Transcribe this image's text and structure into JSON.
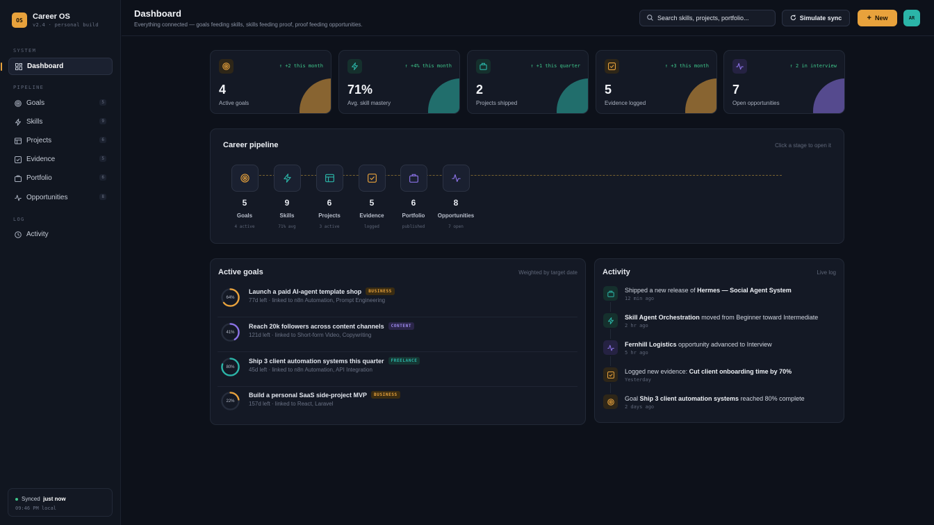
{
  "app": {
    "logo": "OS",
    "name": "Career OS",
    "version": "v2.4 · personal build"
  },
  "sidebar": {
    "system_label": "SYSTEM",
    "dashboard": "Dashboard",
    "pipeline_label": "PIPELINE",
    "items": [
      {
        "label": "Goals",
        "count": "5",
        "icon": "target-icon"
      },
      {
        "label": "Skills",
        "count": "9",
        "icon": "bolt-icon"
      },
      {
        "label": "Projects",
        "count": "6",
        "icon": "layout-icon"
      },
      {
        "label": "Evidence",
        "count": "5",
        "icon": "checkbox-icon"
      },
      {
        "label": "Portfolio",
        "count": "6",
        "icon": "briefcase-icon"
      },
      {
        "label": "Opportunities",
        "count": "8",
        "icon": "pulse-icon"
      }
    ],
    "log_label": "LOG",
    "activity": "Activity",
    "sync_label": "Synced",
    "sync_value": "just now",
    "sync_time": "09:46 PM local"
  },
  "header": {
    "title": "Dashboard",
    "subtitle": "Everything connected — goals feeding skills, skills feeding proof, proof feeding opportunities.",
    "search_placeholder": "Search skills, projects, portfolio...",
    "sync_button": "Simulate sync",
    "new_button": "New",
    "avatar": "AR"
  },
  "stats": [
    {
      "value": "4",
      "label": "Active goals",
      "delta": "+2 this month",
      "color": "#e8a23c",
      "icon": "target-icon"
    },
    {
      "value": "71%",
      "label": "Avg. skill mastery",
      "delta": "+4% this month",
      "color": "#2bb5a8",
      "icon": "bolt-icon"
    },
    {
      "value": "2",
      "label": "Projects shipped",
      "delta": "+1 this quarter",
      "color": "#2bb5a8",
      "icon": "bag-icon"
    },
    {
      "value": "5",
      "label": "Evidence logged",
      "delta": "+3 this month",
      "color": "#e8a23c",
      "icon": "checkbox-icon"
    },
    {
      "value": "7",
      "label": "Open opportunities",
      "delta": "2 in interview",
      "color": "#8b72e6",
      "icon": "pulse-icon"
    }
  ],
  "pipeline": {
    "title": "Career pipeline",
    "hint": "Click a stage to open it",
    "stages": [
      {
        "count": "5",
        "name": "Goals",
        "sub": "4 active"
      },
      {
        "count": "9",
        "name": "Skills",
        "sub": "71% avg"
      },
      {
        "count": "6",
        "name": "Projects",
        "sub": "3 active"
      },
      {
        "count": "5",
        "name": "Evidence",
        "sub": "logged"
      },
      {
        "count": "6",
        "name": "Portfolio",
        "sub": "published"
      },
      {
        "count": "8",
        "name": "Opportunities",
        "sub": "7 open"
      }
    ]
  },
  "goals": {
    "title": "Active goals",
    "hint": "Weighted by target date",
    "items": [
      {
        "pct_label": "64%",
        "pct": 64,
        "title": "Launch a paid AI-agent template shop",
        "tag": "BUSINESS",
        "sub": "77d left · linked to n8n Automation, Prompt Engineering",
        "color": "#e8a23c"
      },
      {
        "pct_label": "41%",
        "pct": 41,
        "title": "Reach 20k followers across content channels",
        "tag": "CONTENT",
        "sub": "121d left · linked to Short-form Video, Copywriting",
        "color": "#8b72e6"
      },
      {
        "pct_label": "80%",
        "pct": 80,
        "title": "Ship 3 client automation systems this quarter",
        "tag": "FREELANCE",
        "sub": "45d left · linked to n8n Automation, API Integration",
        "color": "#2bb5a8"
      },
      {
        "pct_label": "22%",
        "pct": 22,
        "title": "Build a personal SaaS side-project MVP",
        "tag": "BUSINESS",
        "sub": "157d left · linked to React, Laravel",
        "color": "#e8a23c"
      }
    ]
  },
  "activity": {
    "title": "Activity",
    "hint": "Live log",
    "items": [
      {
        "pre": "Shipped a new release of ",
        "bold": "Hermes — Social Agent System",
        "post": "",
        "time": "12 min ago",
        "icon": "bag-icon",
        "color": "#2bb5a8"
      },
      {
        "pre": "",
        "bold": "Skill Agent Orchestration",
        "post": " moved from Beginner toward Intermediate",
        "time": "2 hr ago",
        "icon": "bolt-icon",
        "color": "#2bb5a8"
      },
      {
        "pre": "",
        "bold": "Fernhill Logistics",
        "post": " opportunity advanced to Interview",
        "time": "5 hr ago",
        "icon": "pulse-icon",
        "color": "#8b72e6"
      },
      {
        "pre": "Logged new evidence: ",
        "bold": "Cut client onboarding time by 70%",
        "post": "",
        "time": "Yesterday",
        "icon": "checkbox-icon",
        "color": "#e8a23c"
      },
      {
        "pre": "Goal ",
        "bold": "Ship 3 client automation systems",
        "post": " reached 80% complete",
        "time": "2 days ago",
        "icon": "target-icon",
        "color": "#e8a23c"
      }
    ]
  }
}
